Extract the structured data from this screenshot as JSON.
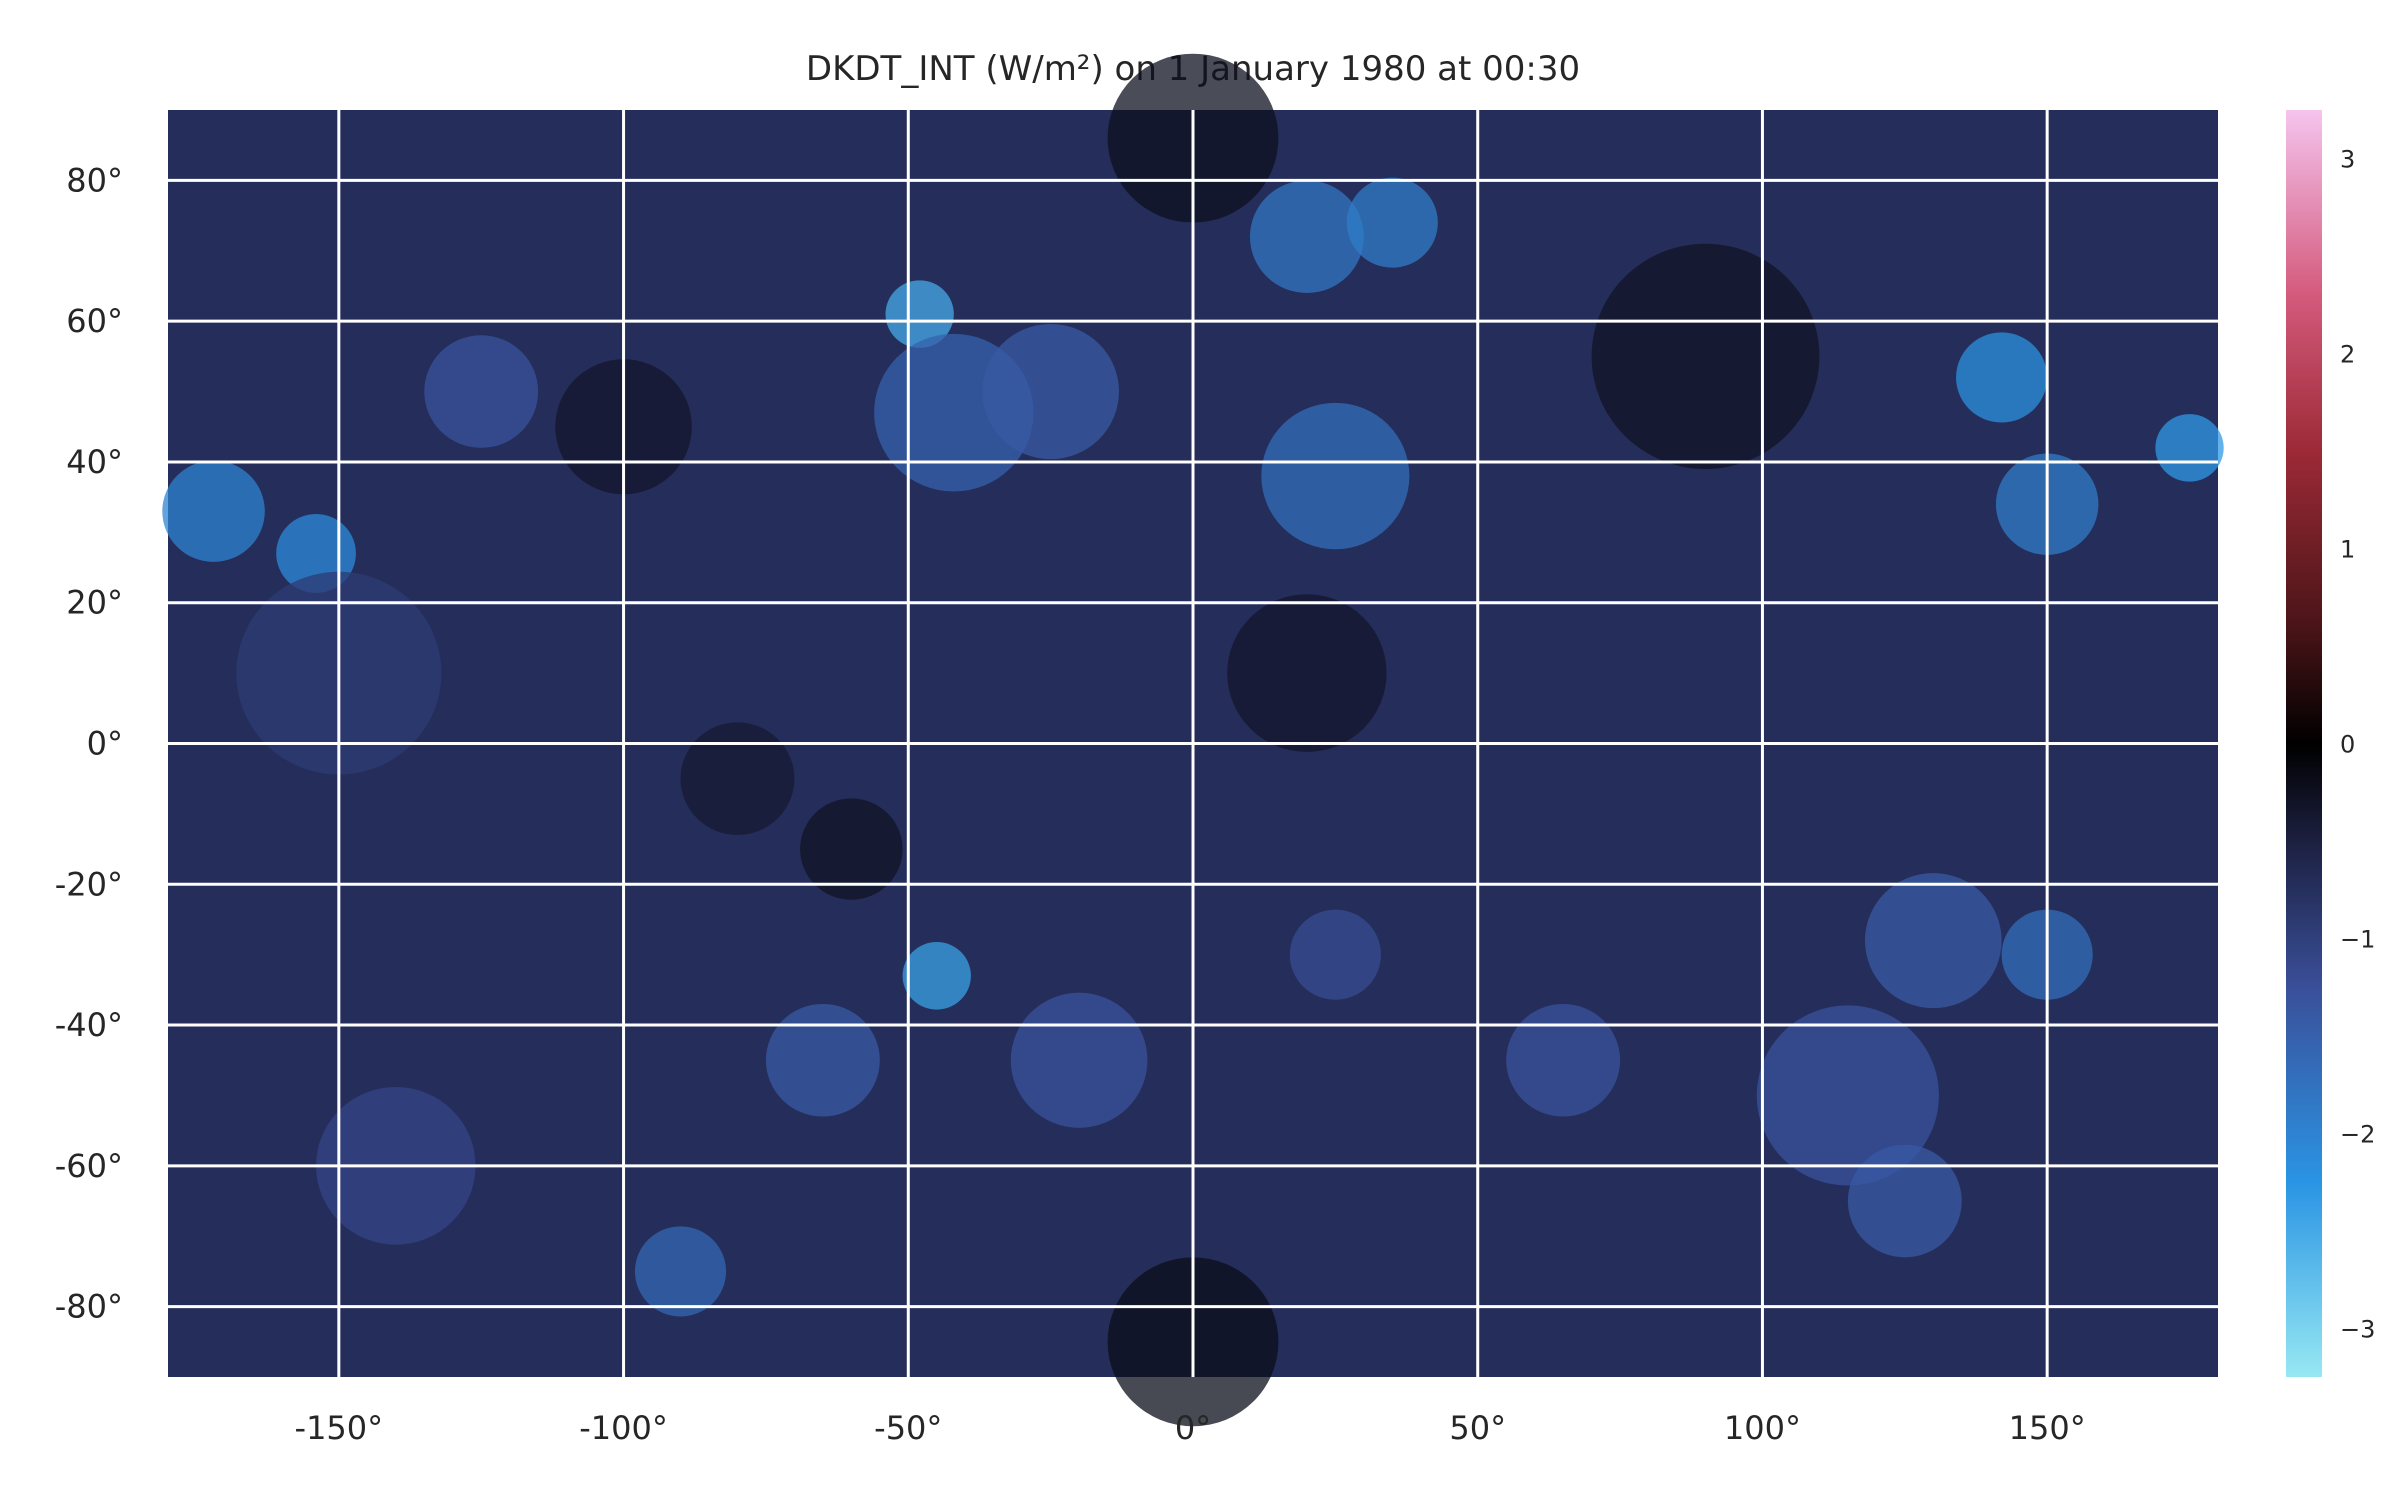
{
  "chart_data": {
    "type": "heatmap",
    "title": "DKDT_INT (W/m²) on 1 January 1980 at 00:30",
    "xlabel": "",
    "ylabel": "",
    "xlim": [
      -180,
      180
    ],
    "ylim": [
      -90,
      90
    ],
    "x_ticks": [
      {
        "value": -150,
        "label": "-150°"
      },
      {
        "value": -100,
        "label": "-100°"
      },
      {
        "value": -50,
        "label": "-50°"
      },
      {
        "value": 0,
        "label": "0°"
      },
      {
        "value": 50,
        "label": "50°"
      },
      {
        "value": 100,
        "label": "100°"
      },
      {
        "value": 150,
        "label": "150°"
      }
    ],
    "y_ticks": [
      {
        "value": 80,
        "label": "80°"
      },
      {
        "value": 60,
        "label": "60°"
      },
      {
        "value": 40,
        "label": "40°"
      },
      {
        "value": 20,
        "label": "20°"
      },
      {
        "value": 0,
        "label": "0°"
      },
      {
        "value": -20,
        "label": "-20°"
      },
      {
        "value": -40,
        "label": "-40°"
      },
      {
        "value": -60,
        "label": "-60°"
      },
      {
        "value": -80,
        "label": "-80°"
      }
    ],
    "grid": true,
    "grid_color": "#ffffff",
    "colorbar": {
      "position": "right",
      "range": [
        -3.25,
        3.25
      ],
      "ticks": [
        {
          "value": 3,
          "label": "3"
        },
        {
          "value": 2,
          "label": "2"
        },
        {
          "value": 1,
          "label": "1"
        },
        {
          "value": 0,
          "label": "0"
        },
        {
          "value": -1,
          "label": "−1"
        },
        {
          "value": -2,
          "label": "−2"
        },
        {
          "value": -3,
          "label": "−3"
        }
      ],
      "stops": [
        {
          "value": -3.25,
          "color": "#96e8f2"
        },
        {
          "value": -2.25,
          "color": "#2a94e4"
        },
        {
          "value": -1.25,
          "color": "#3a4f99"
        },
        {
          "value": -0.5,
          "color": "#1c2040"
        },
        {
          "value": 0,
          "color": "#000000"
        },
        {
          "value": 0.6,
          "color": "#4a1418"
        },
        {
          "value": 1.5,
          "color": "#9c2a36"
        },
        {
          "value": 2.3,
          "color": "#d45a7c"
        },
        {
          "value": 3.25,
          "color": "#f5c4ee"
        }
      ]
    },
    "background_value": -0.72,
    "features": [
      {
        "lon": -172,
        "lat": 33,
        "radius": 9,
        "value": -2.0
      },
      {
        "lon": -154,
        "lat": 27,
        "radius": 7,
        "value": -2.1
      },
      {
        "lon": -125,
        "lat": 50,
        "radius": 10,
        "value": -1.3
      },
      {
        "lon": -48,
        "lat": 61,
        "radius": 6,
        "value": -2.5
      },
      {
        "lon": -42,
        "lat": 47,
        "radius": 14,
        "value": -1.5
      },
      {
        "lon": -25,
        "lat": 50,
        "radius": 12,
        "value": -1.4
      },
      {
        "lon": 20,
        "lat": 72,
        "radius": 10,
        "value": -1.8
      },
      {
        "lon": 35,
        "lat": 74,
        "radius": 8,
        "value": -1.9
      },
      {
        "lon": 25,
        "lat": 38,
        "radius": 13,
        "value": -1.7
      },
      {
        "lon": 142,
        "lat": 52,
        "radius": 8,
        "value": -2.2
      },
      {
        "lon": 150,
        "lat": 34,
        "radius": 9,
        "value": -1.9
      },
      {
        "lon": 175,
        "lat": 42,
        "radius": 6,
        "value": -2.3
      },
      {
        "lon": -45,
        "lat": -33,
        "radius": 6,
        "value": -2.4
      },
      {
        "lon": -65,
        "lat": -45,
        "radius": 10,
        "value": -1.4
      },
      {
        "lon": -20,
        "lat": -45,
        "radius": 12,
        "value": -1.3
      },
      {
        "lon": 25,
        "lat": -30,
        "radius": 8,
        "value": -1.2
      },
      {
        "lon": 65,
        "lat": -45,
        "radius": 10,
        "value": -1.3
      },
      {
        "lon": 130,
        "lat": -28,
        "radius": 12,
        "value": -1.4
      },
      {
        "lon": 150,
        "lat": -30,
        "radius": 8,
        "value": -1.7
      },
      {
        "lon": 115,
        "lat": -50,
        "radius": 16,
        "value": -1.3
      },
      {
        "lon": 125,
        "lat": -65,
        "radius": 10,
        "value": -1.4
      },
      {
        "lon": -90,
        "lat": -75,
        "radius": 8,
        "value": -1.6
      },
      {
        "lon": -140,
        "lat": -60,
        "radius": 14,
        "value": -1.1
      },
      {
        "lon": -150,
        "lat": 10,
        "radius": 18,
        "value": -0.95
      },
      {
        "lon": -80,
        "lat": -5,
        "radius": 10,
        "value": -0.4
      },
      {
        "lon": 20,
        "lat": 10,
        "radius": 14,
        "value": -0.35
      },
      {
        "lon": 90,
        "lat": 55,
        "radius": 20,
        "value": -0.3
      },
      {
        "lon": -100,
        "lat": 45,
        "radius": 12,
        "value": -0.35
      },
      {
        "lon": -60,
        "lat": -15,
        "radius": 9,
        "value": -0.3
      },
      {
        "lon": 0,
        "lat": -85,
        "radius": 15,
        "value": -0.2
      },
      {
        "lon": 0,
        "lat": 86,
        "radius": 15,
        "value": -0.25
      }
    ]
  }
}
